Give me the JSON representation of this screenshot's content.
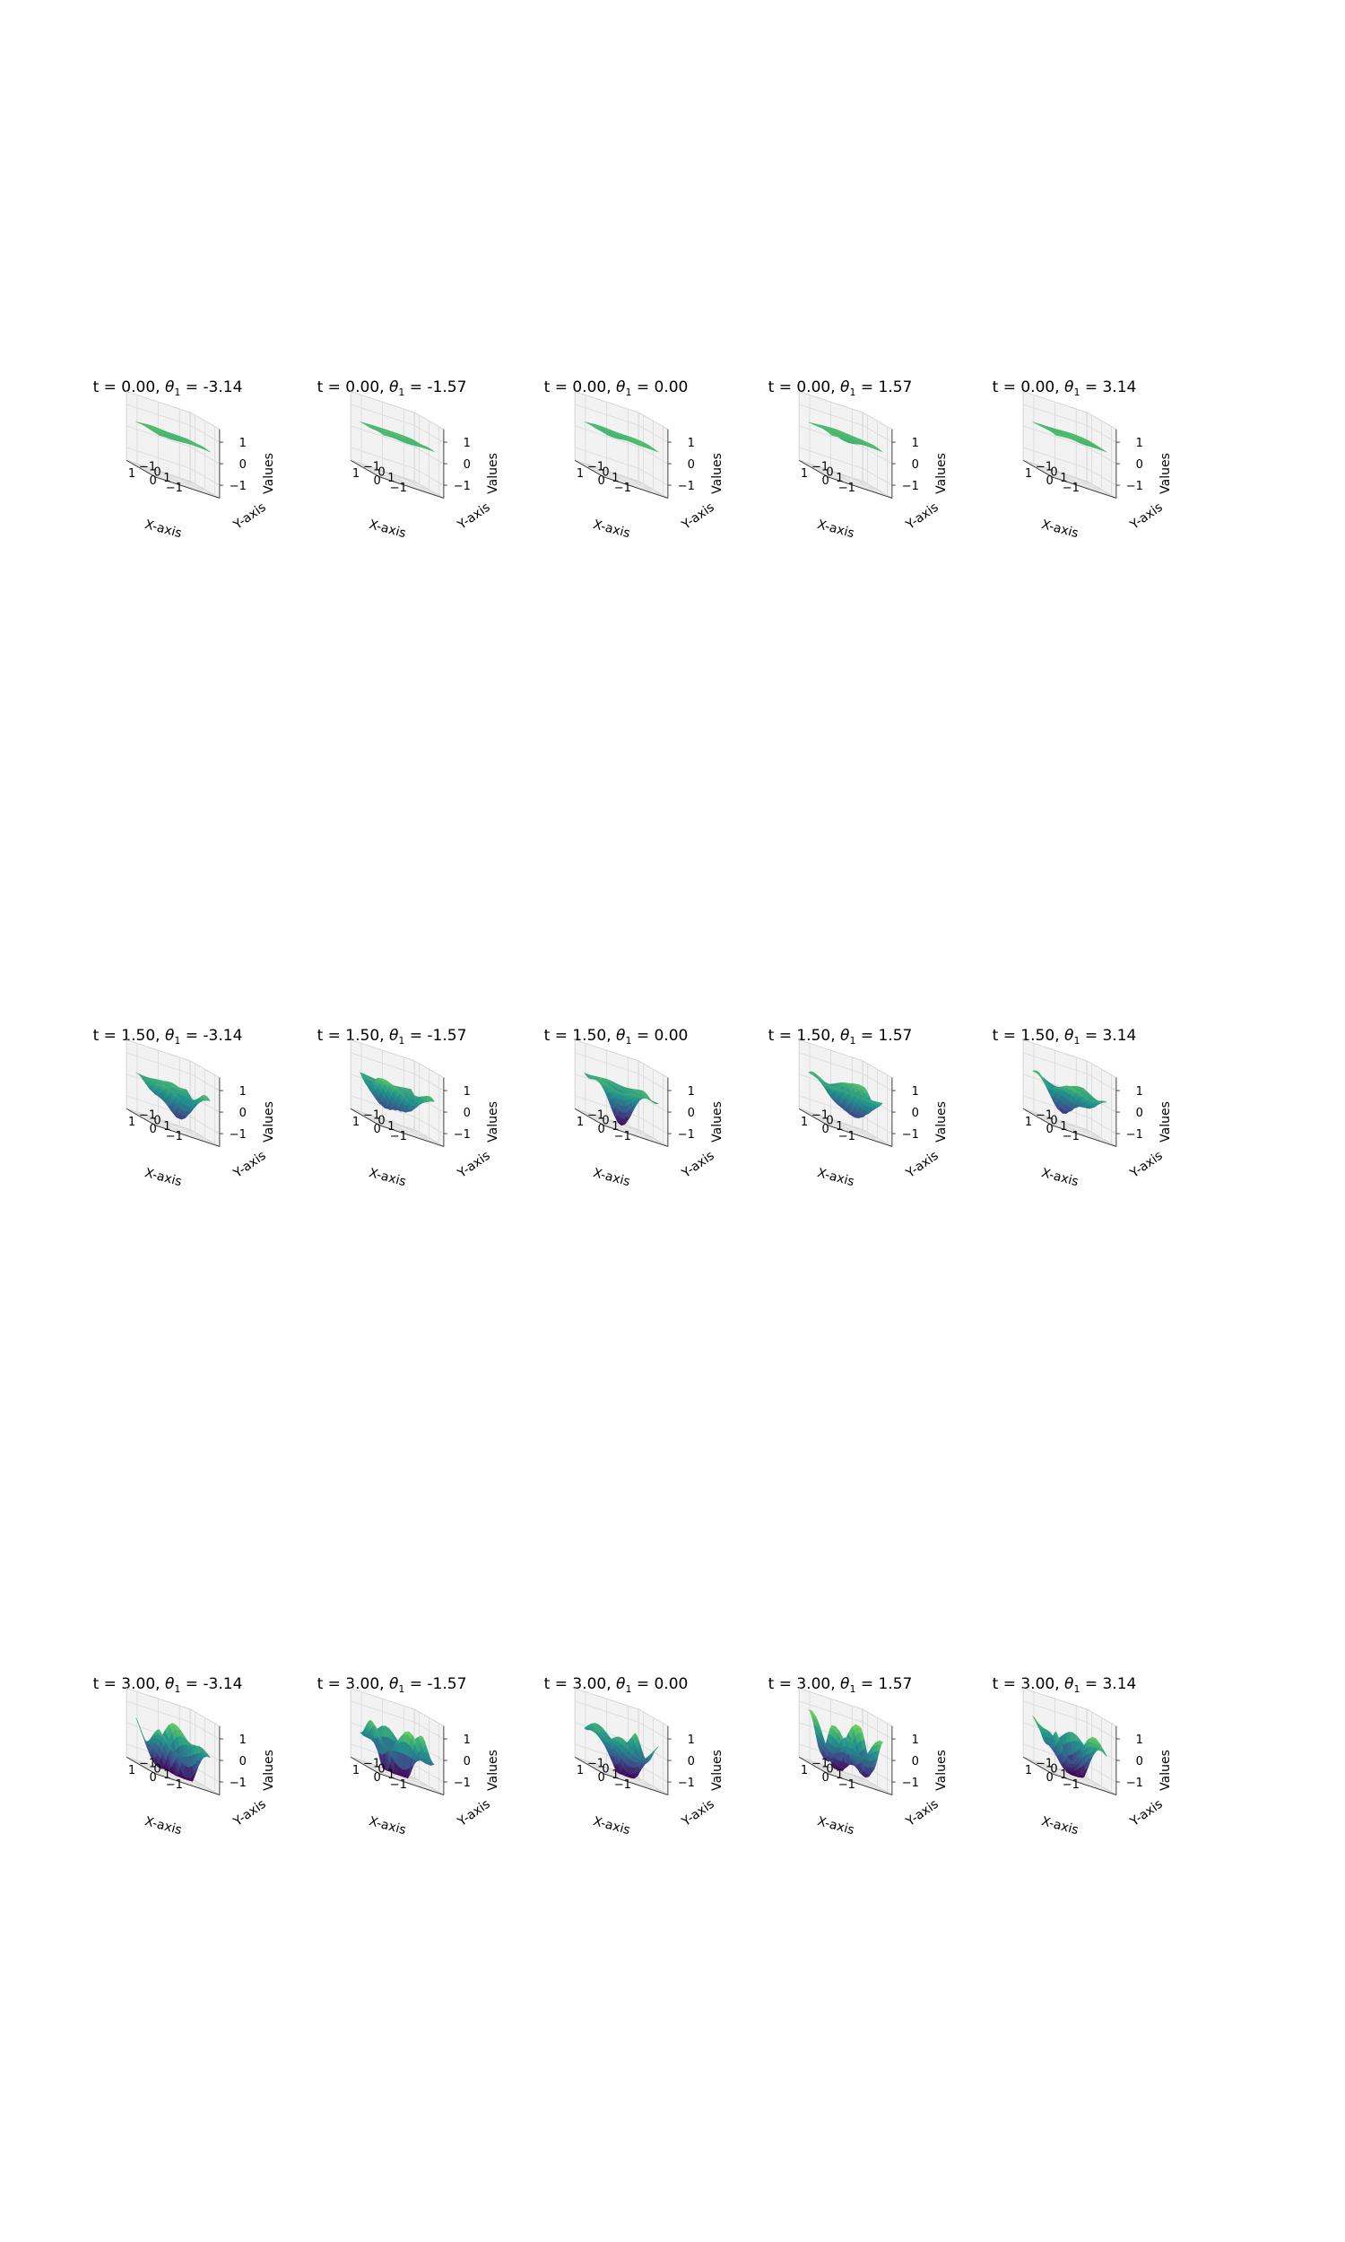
{
  "figure": {
    "colormap": [
      "#440154",
      "#3b528b",
      "#21918c",
      "#5ec962",
      "#fde725"
    ],
    "pane_color": "#f2f2f2",
    "grid_color": "#d9d9d9"
  },
  "chart_data": {
    "type": "surface3d",
    "layout": "3 rows x 5 columns of 3D surface plots",
    "xlabel": "X-axis",
    "ylabel": "Y-axis",
    "zlabel": "Values",
    "x_ticks": [
      "1",
      "0",
      "−1"
    ],
    "y_ticks": [
      "−1",
      "0",
      "1"
    ],
    "z_ticks": [
      "1",
      "0",
      "−1"
    ],
    "xlim": [
      -1.5,
      1.5
    ],
    "ylim": [
      -1.5,
      1.5
    ],
    "zlim": [
      -1.6,
      1.6
    ],
    "grid": true,
    "t_values": [
      "0.00",
      "1.50",
      "3.00"
    ],
    "theta_values": [
      "-3.14",
      "-1.57",
      "0.00",
      "1.57",
      "3.14"
    ],
    "panels": [
      {
        "t": "0.00",
        "theta": "-3.14",
        "title_prefix": "t = 0.00, ",
        "title_suffix": " = -3.14",
        "theta_symbol": "θ",
        "theta_index": "1"
      },
      {
        "t": "0.00",
        "theta": "-1.57",
        "title_prefix": "t = 0.00, ",
        "title_suffix": " = -1.57",
        "theta_symbol": "θ",
        "theta_index": "1"
      },
      {
        "t": "0.00",
        "theta": "0.00",
        "title_prefix": "t = 0.00, ",
        "title_suffix": " = 0.00",
        "theta_symbol": "θ",
        "theta_index": "1"
      },
      {
        "t": "0.00",
        "theta": "1.57",
        "title_prefix": "t = 0.00, ",
        "title_suffix": " = 1.57",
        "theta_symbol": "θ",
        "theta_index": "1"
      },
      {
        "t": "0.00",
        "theta": "3.14",
        "title_prefix": "t = 0.00, ",
        "title_suffix": " = 3.14",
        "theta_symbol": "θ",
        "theta_index": "1"
      },
      {
        "t": "1.50",
        "theta": "-3.14",
        "title_prefix": "t = 1.50, ",
        "title_suffix": " = -3.14",
        "theta_symbol": "θ",
        "theta_index": "1"
      },
      {
        "t": "1.50",
        "theta": "-1.57",
        "title_prefix": "t = 1.50, ",
        "title_suffix": " = -1.57",
        "theta_symbol": "θ",
        "theta_index": "1"
      },
      {
        "t": "1.50",
        "theta": "0.00",
        "title_prefix": "t = 1.50, ",
        "title_suffix": " = 0.00",
        "theta_symbol": "θ",
        "theta_index": "1"
      },
      {
        "t": "1.50",
        "theta": "1.57",
        "title_prefix": "t = 1.50, ",
        "title_suffix": " = 1.57",
        "theta_symbol": "θ",
        "theta_index": "1"
      },
      {
        "t": "1.50",
        "theta": "3.14",
        "title_prefix": "t = 1.50, ",
        "title_suffix": " = 3.14",
        "theta_symbol": "θ",
        "theta_index": "1"
      },
      {
        "t": "3.00",
        "theta": "-3.14",
        "title_prefix": "t = 3.00, ",
        "title_suffix": " = -3.14",
        "theta_symbol": "θ",
        "theta_index": "1"
      },
      {
        "t": "3.00",
        "theta": "-1.57",
        "title_prefix": "t = 3.00, ",
        "title_suffix": " = -1.57",
        "theta_symbol": "θ",
        "theta_index": "1"
      },
      {
        "t": "3.00",
        "theta": "0.00",
        "title_prefix": "t = 3.00, ",
        "title_suffix": " = 0.00",
        "theta_symbol": "θ",
        "theta_index": "1"
      },
      {
        "t": "3.00",
        "theta": "1.57",
        "title_prefix": "t = 3.00, ",
        "title_suffix": " = 1.57",
        "theta_symbol": "θ",
        "theta_index": "1"
      },
      {
        "t": "3.00",
        "theta": "3.14",
        "title_prefix": "t = 3.00, ",
        "title_suffix": " = 3.14",
        "theta_symbol": "θ",
        "theta_index": "1"
      }
    ]
  }
}
